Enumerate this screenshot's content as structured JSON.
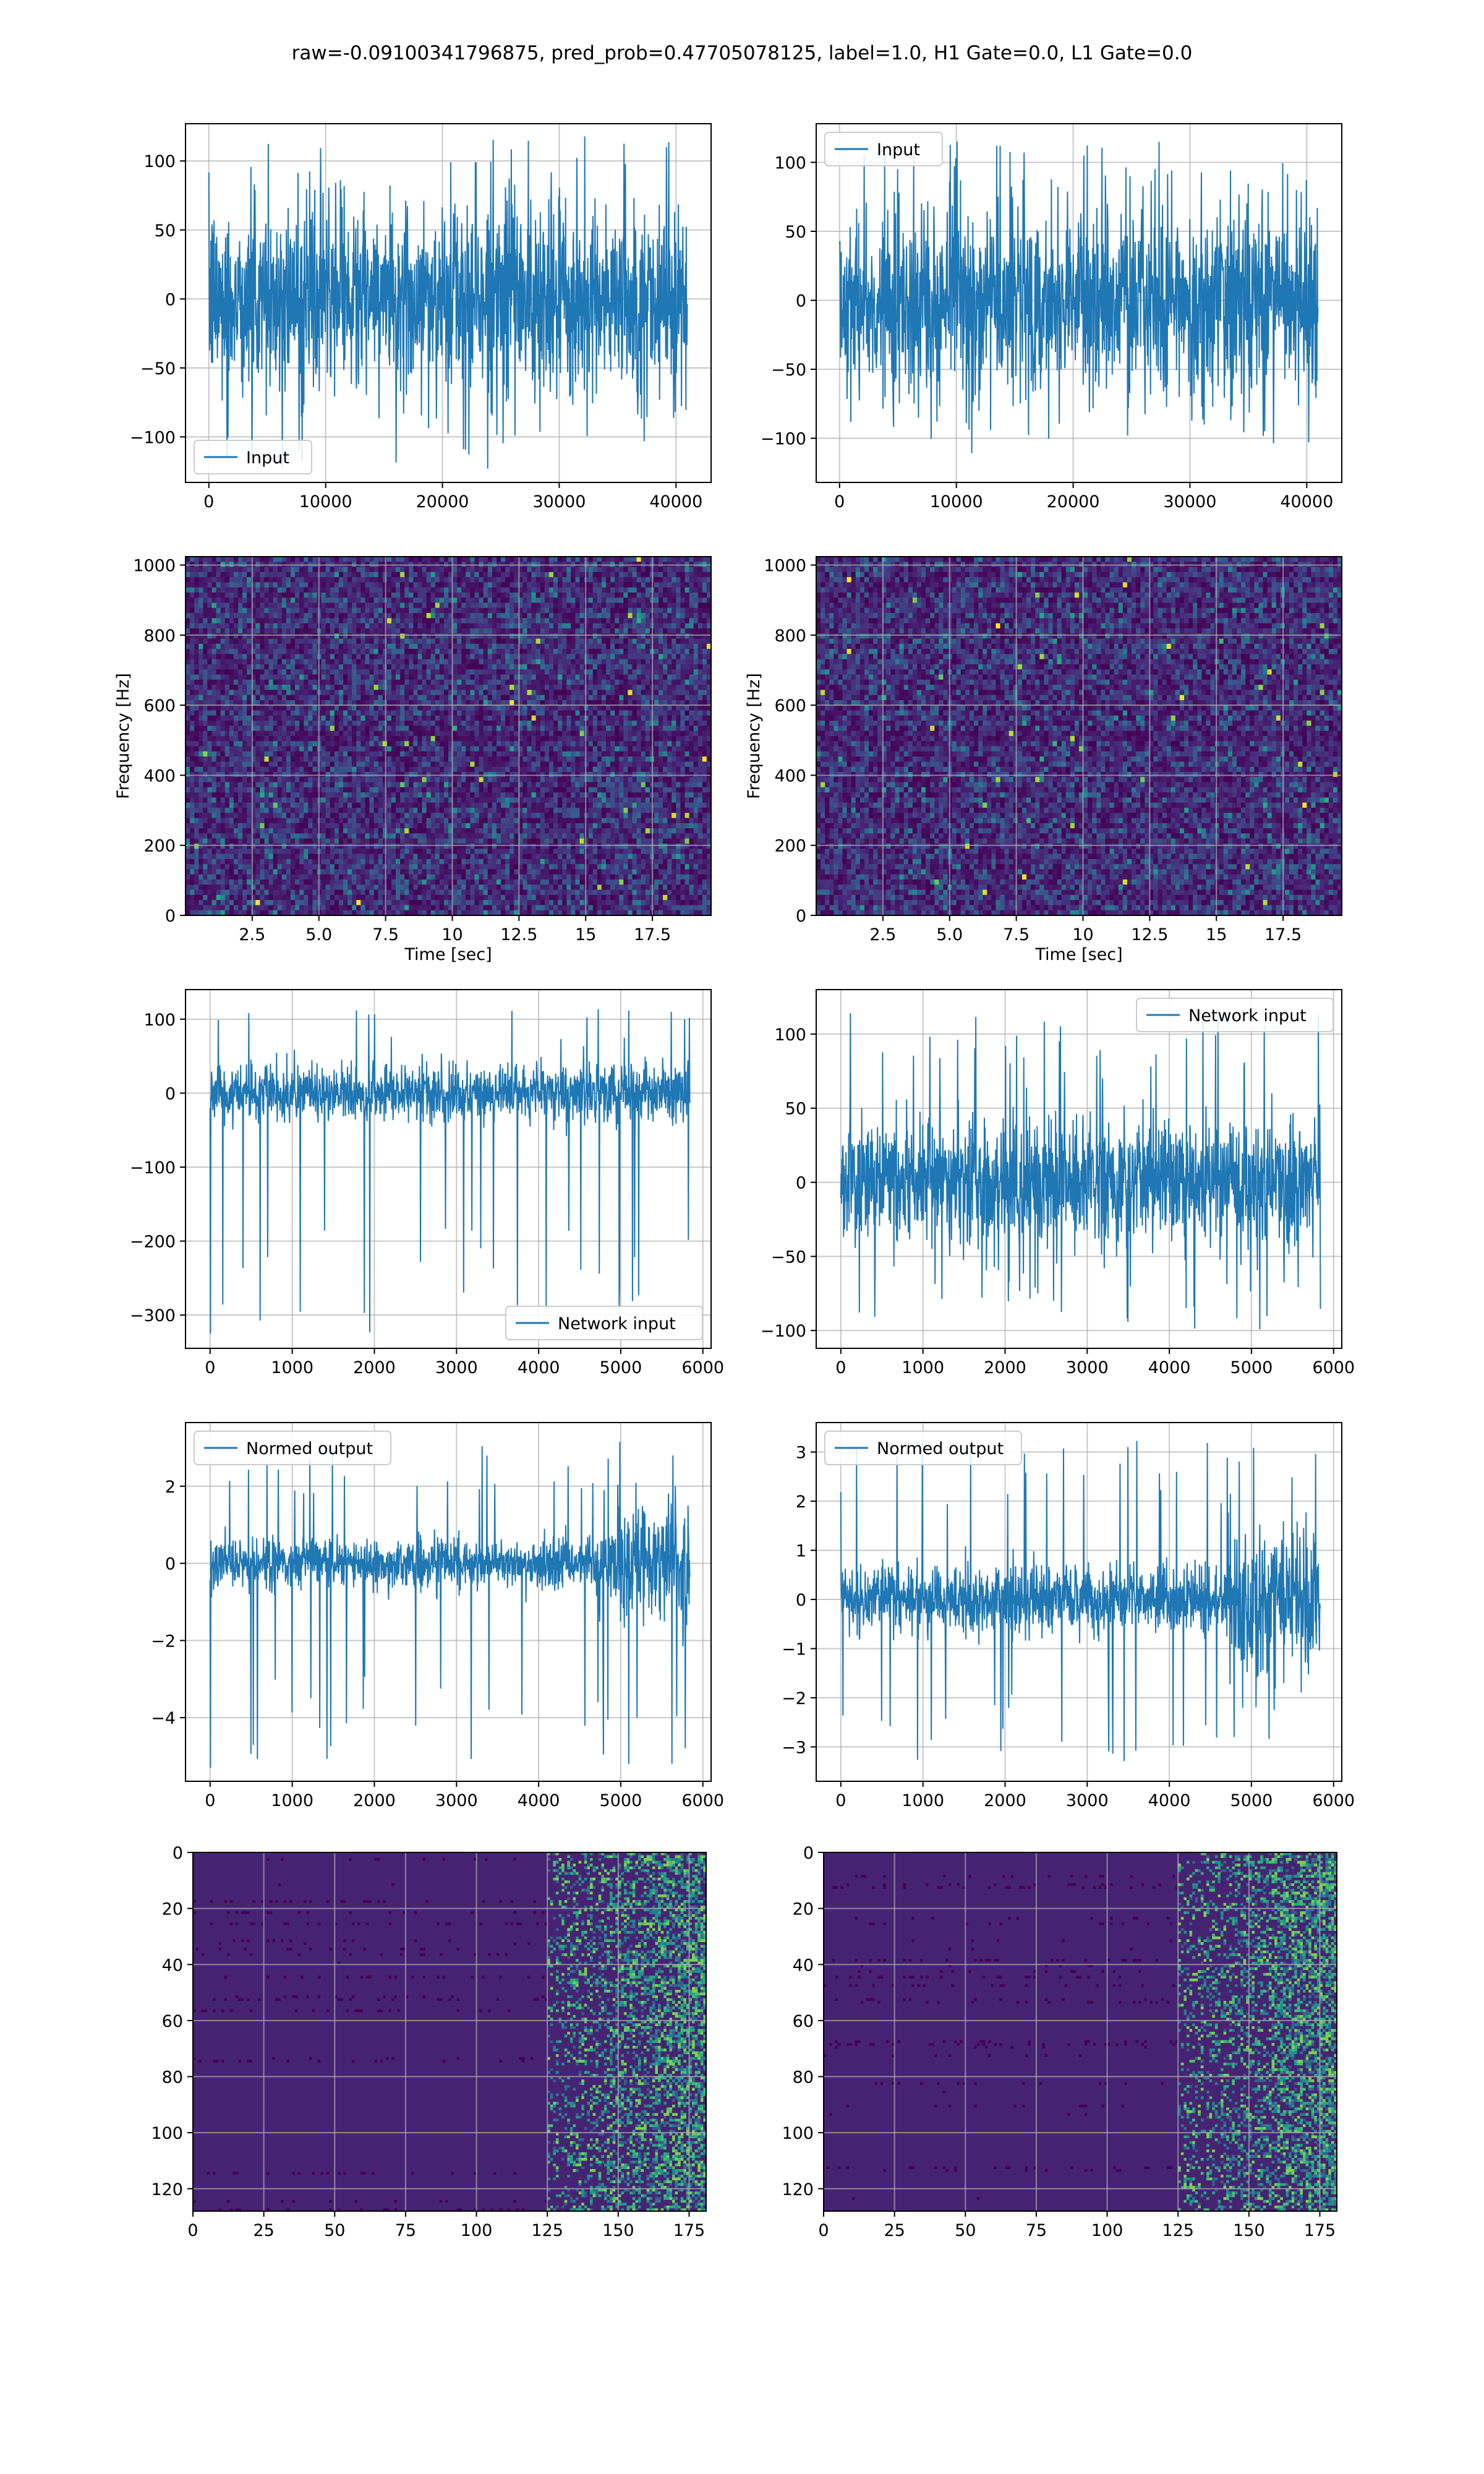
{
  "title": "raw=-0.09100341796875, pred_prob=0.47705078125, label=1.0, H1 Gate=0.0, L1 Gate=0.0",
  "colors": {
    "line": "#1f77b4",
    "grid": "#b0b0b0",
    "viridis_dark": "#440154",
    "viridis_mid": "#21918c",
    "viridis_bright": "#fde725"
  },
  "chart_data": [
    {
      "id": "input-left",
      "type": "line",
      "legend": [
        "Input"
      ],
      "legend_loc": "lower left",
      "xlim": [
        -2000,
        43000
      ],
      "ylim": [
        -133,
        127
      ],
      "xticks": [
        0,
        10000,
        20000,
        30000,
        40000
      ],
      "yticks": [
        -100,
        -50,
        0,
        50,
        100
      ],
      "grid": true,
      "series": [
        {
          "name": "Input",
          "n_samples": 40960,
          "x_range": [
            0,
            40960
          ],
          "y_range": [
            -123,
            120
          ],
          "envelope_core": 60
        }
      ]
    },
    {
      "id": "input-right",
      "type": "line",
      "legend": [
        "Input"
      ],
      "legend_loc": "upper left",
      "xlim": [
        -2000,
        43000
      ],
      "ylim": [
        -132,
        128
      ],
      "xticks": [
        0,
        10000,
        20000,
        30000,
        40000
      ],
      "yticks": [
        -100,
        -50,
        0,
        50,
        100
      ],
      "grid": true,
      "series": [
        {
          "name": "Input",
          "n_samples": 40960,
          "x_range": [
            0,
            40960
          ],
          "y_range": [
            -118,
            115
          ],
          "envelope_core": 60
        }
      ]
    },
    {
      "id": "spectrogram-left",
      "type": "heatmap",
      "colormap": "viridis",
      "ylabel": "Frequency [Hz]",
      "xlabel": "Time [sec]",
      "xlim": [
        0,
        19.7
      ],
      "ylim": [
        0,
        1024
      ],
      "xticks": [
        2.5,
        5.0,
        7.5,
        10.0,
        12.5,
        15.0,
        17.5
      ],
      "yticks": [
        0,
        200,
        400,
        600,
        800,
        1000
      ],
      "grid": true
    },
    {
      "id": "spectrogram-right",
      "type": "heatmap",
      "colormap": "viridis",
      "ylabel": "Frequency [Hz]",
      "xlabel": "Time [sec]",
      "xlim": [
        0,
        19.7
      ],
      "ylim": [
        0,
        1024
      ],
      "xticks": [
        2.5,
        5.0,
        7.5,
        10.0,
        12.5,
        15.0,
        17.5
      ],
      "yticks": [
        0,
        200,
        400,
        600,
        800,
        1000
      ],
      "grid": true
    },
    {
      "id": "network-input-left",
      "type": "line",
      "legend": [
        "Network input"
      ],
      "legend_loc": "lower right",
      "xlim": [
        -300,
        6100
      ],
      "ylim": [
        -345,
        140
      ],
      "xticks": [
        0,
        1000,
        2000,
        3000,
        4000,
        5000,
        6000
      ],
      "yticks": [
        -300,
        -200,
        -100,
        0,
        100
      ],
      "grid": true,
      "series": [
        {
          "name": "Network input",
          "n_samples": 5840,
          "x_range": [
            0,
            5840
          ],
          "y_range": [
            -325,
            115
          ],
          "envelope_core": 35
        }
      ]
    },
    {
      "id": "network-input-right",
      "type": "line",
      "legend": [
        "Network input"
      ],
      "legend_loc": "upper right",
      "xlim": [
        -300,
        6100
      ],
      "ylim": [
        -112,
        130
      ],
      "xticks": [
        0,
        1000,
        2000,
        3000,
        4000,
        5000,
        6000
      ],
      "yticks": [
        -100,
        -50,
        0,
        50,
        100
      ],
      "grid": true,
      "series": [
        {
          "name": "Network input",
          "n_samples": 5840,
          "x_range": [
            0,
            5840
          ],
          "y_range": [
            -103,
            118
          ],
          "envelope_core": 40
        }
      ]
    },
    {
      "id": "normed-output-left",
      "type": "line",
      "legend": [
        "Normed output"
      ],
      "legend_loc": "upper left",
      "xlim": [
        -300,
        6100
      ],
      "ylim": [
        -5.65,
        3.65
      ],
      "xticks": [
        0,
        1000,
        2000,
        3000,
        4000,
        5000,
        6000
      ],
      "yticks": [
        -4,
        -2,
        0,
        2
      ],
      "grid": true,
      "series": [
        {
          "name": "Normed output",
          "n_samples": 5840,
          "x_range": [
            0,
            5840
          ],
          "y_range": [
            -5.3,
            3.3
          ],
          "envelope_core": 0.6
        }
      ]
    },
    {
      "id": "normed-output-right",
      "type": "line",
      "legend": [
        "Normed output"
      ],
      "legend_loc": "upper left",
      "xlim": [
        -300,
        6100
      ],
      "ylim": [
        -3.7,
        3.6
      ],
      "xticks": [
        0,
        1000,
        2000,
        3000,
        4000,
        5000,
        6000
      ],
      "yticks": [
        -3,
        -2,
        -1,
        0,
        1,
        2,
        3
      ],
      "grid": true,
      "series": [
        {
          "name": "Normed output",
          "n_samples": 5840,
          "x_range": [
            0,
            5840
          ],
          "y_range": [
            -3.3,
            3.3
          ],
          "envelope_core": 0.6
        }
      ]
    },
    {
      "id": "features-left",
      "type": "heatmap",
      "colormap": "viridis",
      "xlim": [
        0,
        181
      ],
      "ylim": [
        128,
        0
      ],
      "xticks": [
        0,
        25,
        50,
        75,
        100,
        125,
        150,
        175
      ],
      "yticks": [
        0,
        20,
        40,
        60,
        80,
        100,
        120
      ],
      "grid": true,
      "activity_onset_col": 125
    },
    {
      "id": "features-right",
      "type": "heatmap",
      "colormap": "viridis",
      "xlim": [
        0,
        181
      ],
      "ylim": [
        128,
        0
      ],
      "xticks": [
        0,
        25,
        50,
        75,
        100,
        125,
        150,
        175
      ],
      "yticks": [
        0,
        20,
        40,
        60,
        80,
        100,
        120
      ],
      "grid": true,
      "activity_onset_col": 125
    }
  ]
}
